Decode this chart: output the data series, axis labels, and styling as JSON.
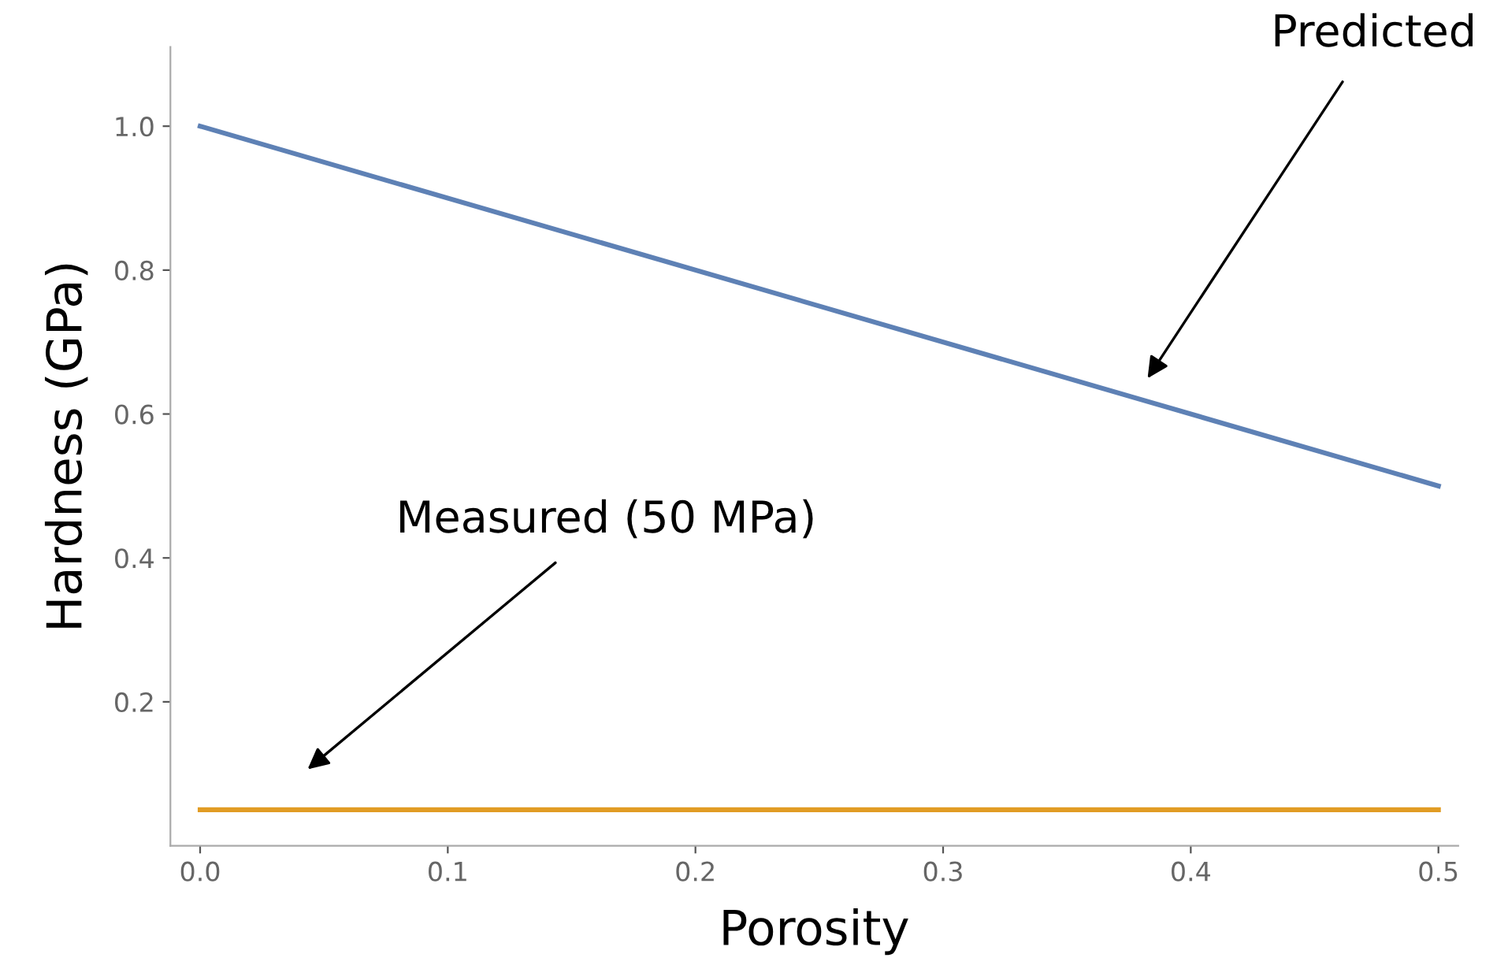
{
  "chart_data": {
    "type": "line",
    "xlabel": "Porosity",
    "ylabel": "Hardness (GPa)",
    "x": [
      0,
      0.5
    ],
    "series": [
      {
        "color": "#5e81b5",
        "values": [
          1.0,
          0.5
        ]
      },
      {
        "color": "#e19c24",
        "values": [
          0.05,
          0.05
        ]
      }
    ],
    "annotations": [
      "Predicted",
      "Measured (50 MPa)"
    ],
    "xlim": [
      -0.012,
      0.508
    ],
    "ylim": [
      0,
      1.11
    ],
    "xticks": [
      {
        "value": 0,
        "label": "0.0"
      },
      0.1,
      0.2,
      0.3,
      0.4,
      0.5
    ],
    "yticks": [
      0.2,
      0.4,
      0.6,
      0.8,
      {
        "value": 1.0,
        "label": "1.0"
      }
    ],
    "grid": false,
    "legend": false
  }
}
